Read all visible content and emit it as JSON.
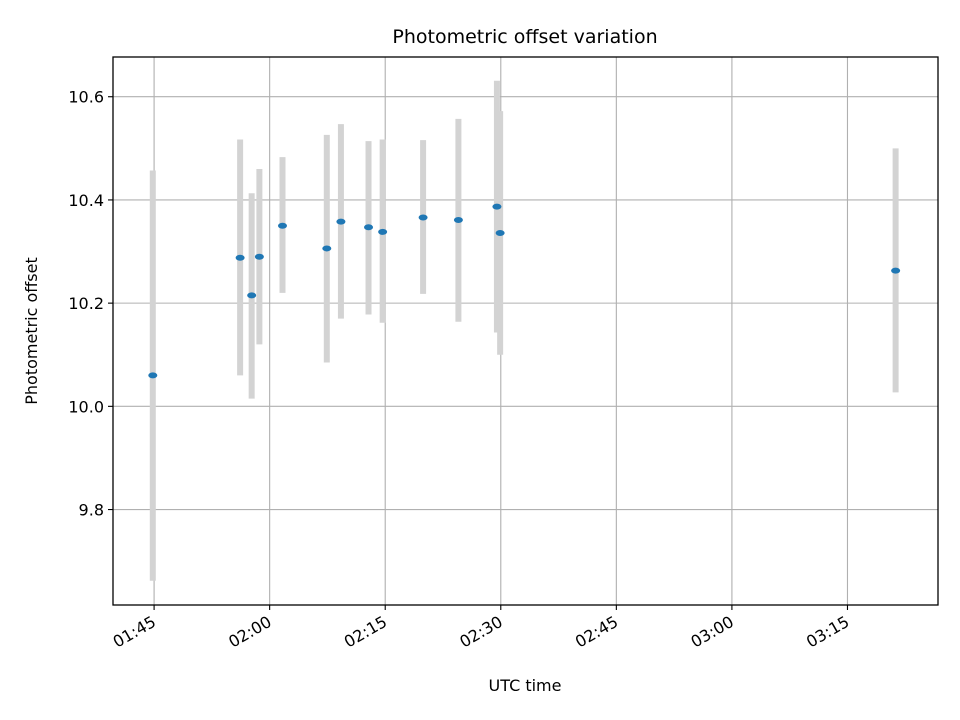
{
  "chart_data": {
    "type": "scatter",
    "title": "Photometric offset variation",
    "xlabel": "UTC time",
    "ylabel": "Photometric offset",
    "grid": true,
    "x_ticks": [
      "01:45",
      "02:00",
      "02:15",
      "02:30",
      "02:45",
      "03:00",
      "03:15"
    ],
    "y_ticks": [
      "9.8",
      "10.0",
      "10.2",
      "10.4",
      "10.6"
    ],
    "y_tick_values": [
      9.8,
      10.0,
      10.2,
      10.4,
      10.6
    ],
    "xlim": [
      "01:39:40",
      "03:26:45"
    ],
    "ylim": [
      9.615,
      10.677
    ],
    "marker_color": "#1f77b4",
    "errorbar_color": "#d3d3d3",
    "points": [
      {
        "time": "01:44:50",
        "value": 10.06,
        "error_low": 9.662,
        "error_high": 10.457
      },
      {
        "time": "01:56:10",
        "value": 10.288,
        "error_low": 10.06,
        "error_high": 10.517
      },
      {
        "time": "01:57:40",
        "value": 10.215,
        "error_low": 10.015,
        "error_high": 10.413
      },
      {
        "time": "01:58:40",
        "value": 10.29,
        "error_low": 10.12,
        "error_high": 10.46
      },
      {
        "time": "02:01:40",
        "value": 10.35,
        "error_low": 10.22,
        "error_high": 10.483
      },
      {
        "time": "02:07:25",
        "value": 10.306,
        "error_low": 10.085,
        "error_high": 10.526
      },
      {
        "time": "02:09:15",
        "value": 10.358,
        "error_low": 10.17,
        "error_high": 10.547
      },
      {
        "time": "02:12:50",
        "value": 10.347,
        "error_low": 10.178,
        "error_high": 10.514
      },
      {
        "time": "02:14:40",
        "value": 10.338,
        "error_low": 10.162,
        "error_high": 10.517
      },
      {
        "time": "02:19:55",
        "value": 10.366,
        "error_low": 10.218,
        "error_high": 10.516
      },
      {
        "time": "02:24:30",
        "value": 10.361,
        "error_low": 10.164,
        "error_high": 10.557
      },
      {
        "time": "02:29:30",
        "value": 10.387,
        "error_low": 10.143,
        "error_high": 10.631
      },
      {
        "time": "02:29:55",
        "value": 10.336,
        "error_low": 10.1,
        "error_high": 10.572
      },
      {
        "time": "03:21:15",
        "value": 10.263,
        "error_low": 10.027,
        "error_high": 10.5
      }
    ]
  }
}
